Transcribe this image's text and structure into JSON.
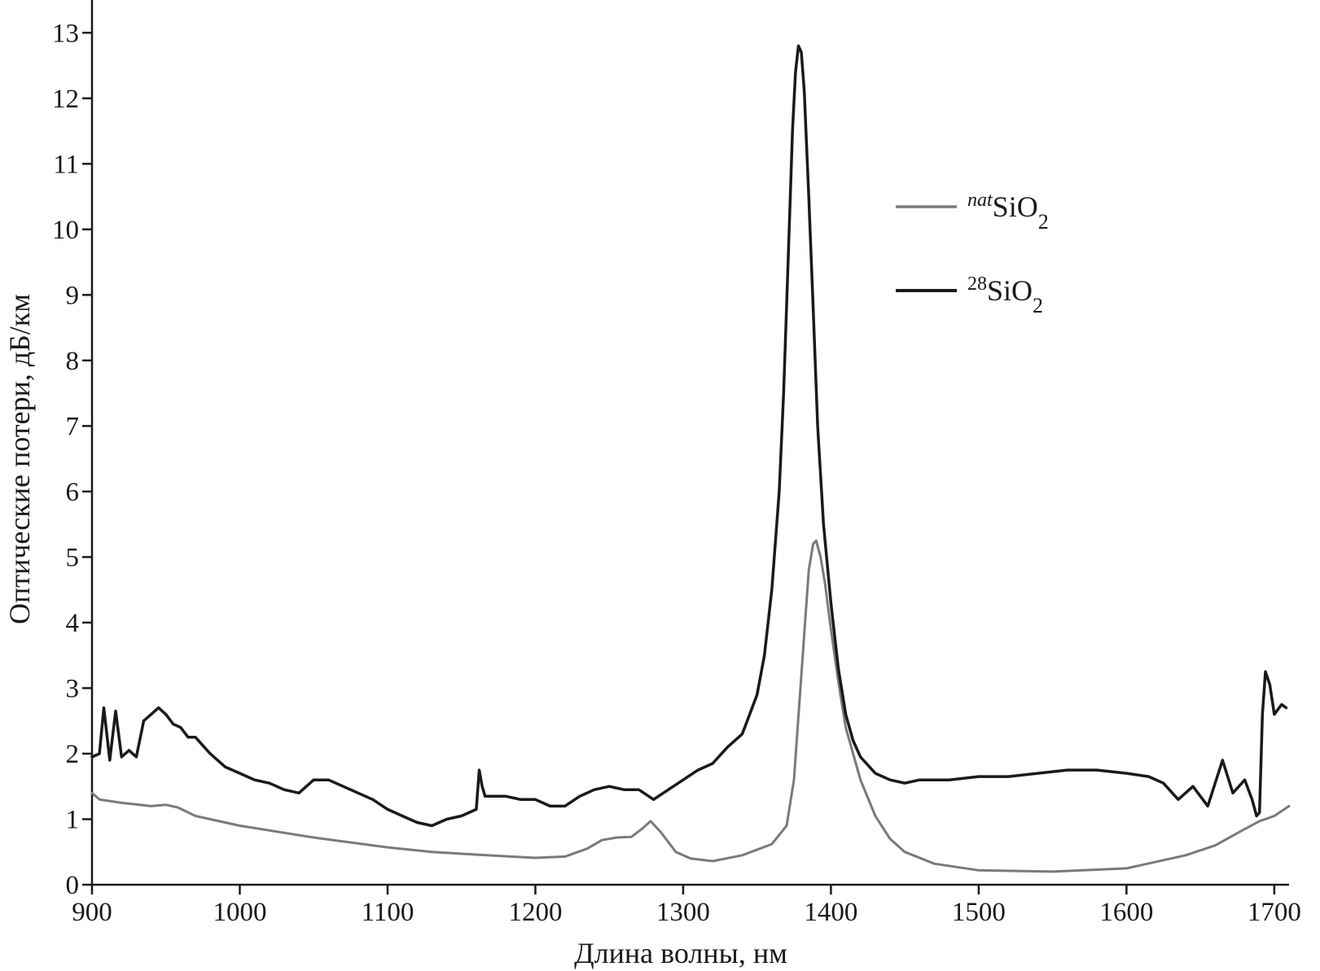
{
  "chart_data": {
    "type": "line",
    "xlabel": "Длина волны, нм",
    "ylabel": "Оптические потери, дБ/км",
    "xlim": [
      900,
      1710
    ],
    "ylim": [
      0,
      13.5
    ],
    "x_ticks": [
      900,
      1000,
      1100,
      1200,
      1300,
      1400,
      1500,
      1600,
      1700
    ],
    "y_ticks": [
      0,
      1,
      2,
      3,
      4,
      5,
      6,
      7,
      8,
      9,
      10,
      11,
      12,
      13
    ],
    "grid": false,
    "legend_position": "top-right",
    "series": [
      {
        "name": "natSiO2",
        "legend_sup": "nat",
        "legend_base": "SiO",
        "legend_sub": "2",
        "color": "#7a7a7a",
        "stroke_width": 3,
        "x": [
          900,
          905,
          920,
          940,
          950,
          958,
          970,
          1000,
          1050,
          1100,
          1130,
          1160,
          1200,
          1220,
          1235,
          1245,
          1255,
          1265,
          1272,
          1278,
          1285,
          1295,
          1305,
          1320,
          1340,
          1360,
          1370,
          1375,
          1380,
          1385,
          1388,
          1390,
          1393,
          1396,
          1400,
          1405,
          1410,
          1420,
          1430,
          1440,
          1450,
          1470,
          1500,
          1550,
          1600,
          1640,
          1660,
          1680,
          1690,
          1700,
          1710
        ],
        "y": [
          1.4,
          1.3,
          1.25,
          1.2,
          1.22,
          1.18,
          1.05,
          0.9,
          0.72,
          0.57,
          0.5,
          0.46,
          0.41,
          0.43,
          0.55,
          0.68,
          0.72,
          0.73,
          0.85,
          0.97,
          0.8,
          0.5,
          0.4,
          0.36,
          0.45,
          0.62,
          0.9,
          1.6,
          3.2,
          4.8,
          5.2,
          5.25,
          5.0,
          4.6,
          3.9,
          3.1,
          2.4,
          1.6,
          1.05,
          0.7,
          0.5,
          0.32,
          0.22,
          0.2,
          0.25,
          0.45,
          0.6,
          0.85,
          0.97,
          1.05,
          1.2
        ]
      },
      {
        "name": "28SiO2",
        "legend_sup": "28",
        "legend_base": "SiO",
        "legend_sub": "2",
        "color": "#1a1a1a",
        "stroke_width": 3.5,
        "x": [
          900,
          905,
          908,
          912,
          916,
          920,
          925,
          930,
          935,
          940,
          945,
          950,
          955,
          960,
          965,
          970,
          980,
          990,
          1000,
          1010,
          1020,
          1030,
          1040,
          1050,
          1060,
          1070,
          1080,
          1090,
          1100,
          1110,
          1120,
          1130,
          1140,
          1150,
          1160,
          1162,
          1164,
          1166,
          1170,
          1180,
          1190,
          1200,
          1210,
          1220,
          1230,
          1240,
          1250,
          1260,
          1270,
          1280,
          1290,
          1300,
          1310,
          1320,
          1330,
          1340,
          1345,
          1350,
          1355,
          1360,
          1365,
          1368,
          1371,
          1374,
          1376,
          1378,
          1380,
          1382,
          1385,
          1388,
          1391,
          1395,
          1400,
          1405,
          1410,
          1415,
          1420,
          1430,
          1440,
          1450,
          1460,
          1480,
          1500,
          1520,
          1540,
          1560,
          1580,
          1600,
          1615,
          1625,
          1635,
          1645,
          1655,
          1665,
          1672,
          1680,
          1685,
          1688,
          1690,
          1692,
          1694,
          1697,
          1700,
          1705,
          1708
        ],
        "y": [
          1.95,
          2.0,
          2.7,
          1.9,
          2.65,
          1.95,
          2.05,
          1.95,
          2.5,
          2.6,
          2.7,
          2.6,
          2.45,
          2.4,
          2.25,
          2.25,
          2.0,
          1.8,
          1.7,
          1.6,
          1.55,
          1.45,
          1.4,
          1.6,
          1.6,
          1.5,
          1.4,
          1.3,
          1.15,
          1.05,
          0.95,
          0.9,
          1.0,
          1.05,
          1.15,
          1.75,
          1.5,
          1.35,
          1.35,
          1.35,
          1.3,
          1.3,
          1.2,
          1.2,
          1.35,
          1.45,
          1.5,
          1.45,
          1.45,
          1.3,
          1.45,
          1.6,
          1.75,
          1.85,
          2.1,
          2.3,
          2.6,
          2.9,
          3.5,
          4.5,
          6.0,
          7.5,
          9.5,
          11.5,
          12.4,
          12.8,
          12.7,
          12.1,
          10.5,
          8.8,
          7.0,
          5.5,
          4.3,
          3.3,
          2.6,
          2.2,
          1.95,
          1.7,
          1.6,
          1.55,
          1.6,
          1.6,
          1.65,
          1.65,
          1.7,
          1.75,
          1.75,
          1.7,
          1.65,
          1.55,
          1.3,
          1.5,
          1.2,
          1.9,
          1.4,
          1.6,
          1.3,
          1.05,
          1.1,
          2.6,
          3.25,
          3.05,
          2.6,
          2.75,
          2.7
        ]
      }
    ]
  }
}
